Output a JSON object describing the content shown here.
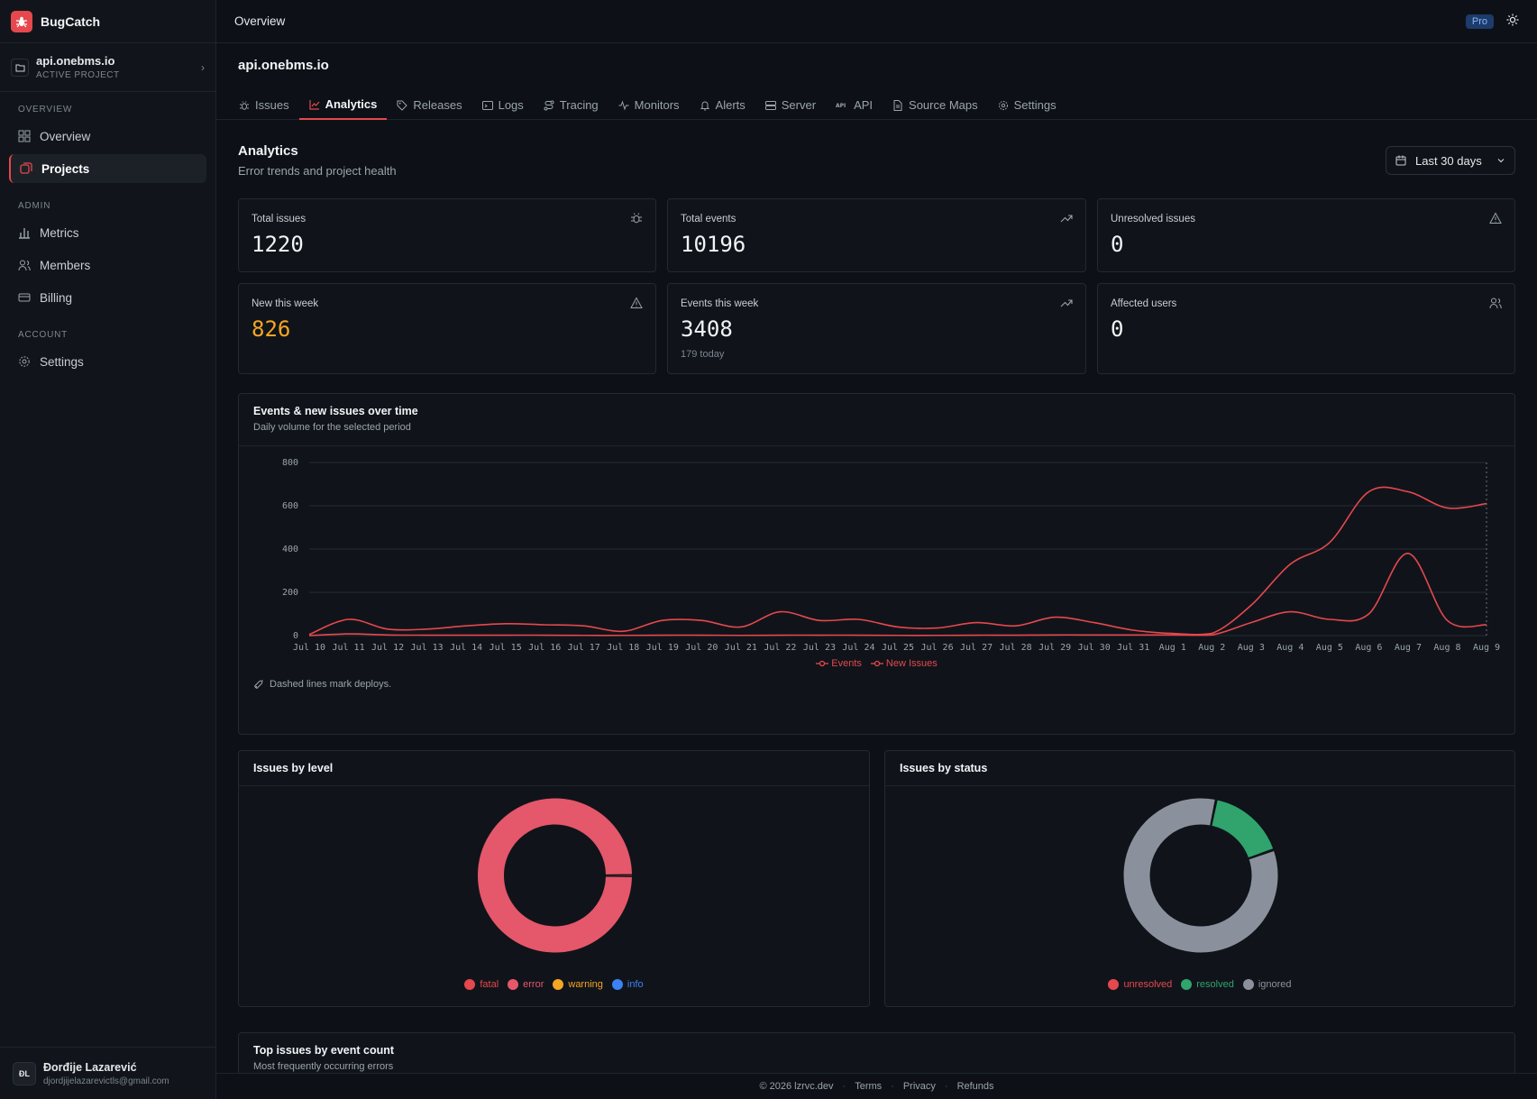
{
  "brand": {
    "name": "BugCatch"
  },
  "project_switcher": {
    "name": "api.onebms.io",
    "subtitle": "ACTIVE PROJECT"
  },
  "sidebar": {
    "sections": [
      {
        "heading": "OVERVIEW",
        "items": [
          {
            "label": "Overview",
            "icon": "grid-icon"
          },
          {
            "label": "Projects",
            "icon": "projects-icon",
            "active": true
          }
        ]
      },
      {
        "heading": "ADMIN",
        "items": [
          {
            "label": "Metrics",
            "icon": "bar-chart-icon"
          },
          {
            "label": "Members",
            "icon": "users-icon"
          },
          {
            "label": "Billing",
            "icon": "credit-card-icon"
          }
        ]
      },
      {
        "heading": "ACCOUNT",
        "items": [
          {
            "label": "Settings",
            "icon": "gear-icon"
          }
        ]
      }
    ]
  },
  "user": {
    "initials": "ĐL",
    "name": "Đorđije Lazarević",
    "email": "djordjijelazarevictls@gmail.com"
  },
  "topbar": {
    "title": "Overview",
    "badge": "Pro"
  },
  "project_header": {
    "title": "api.onebms.io"
  },
  "tabs": [
    {
      "label": "Issues",
      "icon": "bug-icon"
    },
    {
      "label": "Analytics",
      "icon": "chart-icon",
      "active": true
    },
    {
      "label": "Releases",
      "icon": "tag-icon"
    },
    {
      "label": "Logs",
      "icon": "terminal-icon"
    },
    {
      "label": "Tracing",
      "icon": "route-icon"
    },
    {
      "label": "Monitors",
      "icon": "pulse-icon"
    },
    {
      "label": "Alerts",
      "icon": "bell-icon"
    },
    {
      "label": "Server",
      "icon": "server-icon"
    },
    {
      "label": "API",
      "icon": "api-icon"
    },
    {
      "label": "Source Maps",
      "icon": "file-icon"
    },
    {
      "label": "Settings",
      "icon": "gear-icon"
    }
  ],
  "analytics": {
    "title": "Analytics",
    "subtitle": "Error trends and project health",
    "range": "Last 30 days"
  },
  "stats": [
    {
      "label": "Total issues",
      "value": "1220",
      "icon": "bug-icon"
    },
    {
      "label": "Total events",
      "value": "10196",
      "icon": "trend-up-icon"
    },
    {
      "label": "Unresolved issues",
      "value": "0",
      "icon": "warning-icon"
    },
    {
      "label": "New this week",
      "value": "826",
      "icon": "warning-icon",
      "accent": "#f5a623"
    },
    {
      "label": "Events this week",
      "value": "3408",
      "sub": "179 today",
      "icon": "trend-up-icon"
    },
    {
      "label": "Affected users",
      "value": "0",
      "icon": "users-icon"
    }
  ],
  "colors": {
    "events": "#e5484d",
    "new_issues": "#e5484d",
    "fatal": "#e5484d",
    "error": "#e5576a",
    "warning": "#f5a623",
    "info": "#3b82f6",
    "unresolved": "#e5484d",
    "resolved": "#30a46c",
    "ignored": "#8b919c"
  },
  "timeline": {
    "title": "Events & new issues over time",
    "subtitle": "Daily volume for the selected period",
    "deploy_note": "Dashed lines mark deploys."
  },
  "level_chart": {
    "title": "Issues by level"
  },
  "status_chart": {
    "title": "Issues by status"
  },
  "top_issues": {
    "title": "Top issues by event count",
    "subtitle": "Most frequently occurring errors"
  },
  "footer": {
    "copyright": "© 2026 lzrvc.dev",
    "links": [
      "Terms",
      "Privacy",
      "Refunds"
    ]
  },
  "chart_data": [
    {
      "type": "line",
      "x": [
        "Jul 10",
        "Jul 11",
        "Jul 12",
        "Jul 13",
        "Jul 14",
        "Jul 15",
        "Jul 16",
        "Jul 17",
        "Jul 18",
        "Jul 19",
        "Jul 20",
        "Jul 21",
        "Jul 22",
        "Jul 23",
        "Jul 24",
        "Jul 25",
        "Jul 26",
        "Jul 27",
        "Jul 28",
        "Jul 29",
        "Jul 30",
        "Jul 31",
        "Aug 1",
        "Aug 2",
        "Aug 3",
        "Aug 4",
        "Aug 5",
        "Aug 6",
        "Aug 7",
        "Aug 8",
        "Aug 9"
      ],
      "series": [
        {
          "name": "Events",
          "values": [
            5,
            75,
            30,
            30,
            45,
            55,
            50,
            45,
            20,
            70,
            70,
            40,
            110,
            70,
            75,
            40,
            35,
            60,
            45,
            85,
            60,
            25,
            10,
            10,
            140,
            330,
            430,
            665,
            665,
            590,
            610
          ]
        },
        {
          "name": "New Issues",
          "values": [
            0,
            8,
            3,
            2,
            2,
            2,
            2,
            1,
            1,
            2,
            2,
            1,
            2,
            2,
            2,
            1,
            1,
            2,
            2,
            3,
            3,
            3,
            3,
            3,
            60,
            110,
            75,
            100,
            380,
            70,
            50
          ]
        }
      ],
      "ylim": [
        0,
        800
      ],
      "yticks": [
        0,
        200,
        400,
        600,
        800
      ],
      "deploys": [
        "Aug 9"
      ],
      "grid": true,
      "legend": "bottom"
    },
    {
      "type": "pie",
      "categories": [
        "fatal",
        "error",
        "warning",
        "info"
      ],
      "values": [
        1,
        1219,
        0,
        0
      ],
      "legend": "bottom"
    },
    {
      "type": "pie",
      "categories": [
        "unresolved",
        "resolved",
        "ignored"
      ],
      "values": [
        0,
        200,
        1020
      ],
      "legend": "bottom"
    }
  ]
}
